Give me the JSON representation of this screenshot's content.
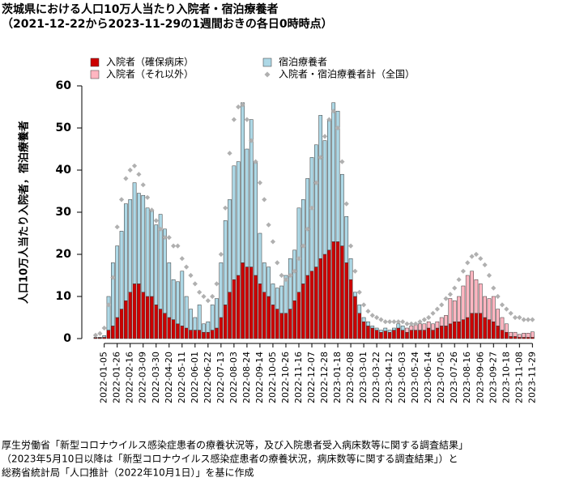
{
  "chart_data": {
    "type": "bar",
    "title": "茨城県における人口10万人当たり入院者・宿泊療養者",
    "subtitle": "（2021-12-22から2023-11-29の1週間おきの各日0時時点）",
    "ylabel": "人口10万人当たり入院者，宿泊療養者",
    "source": [
      "厚生労働省「新型コロナウイルス感染症患者の療養状況等，及び入院患者受入病床数等に関する調査結果」",
      "（2023年5月10日以降は「新型コロナウイルス感染症患者の療養状況，病床数等に関する調査結果」）と",
      "総務省統計局「人口推計（2022年10月1日）」を基に作成"
    ],
    "categories": [
      null,
      null,
      "2022-01-05",
      null,
      null,
      "2022-01-26",
      null,
      null,
      "2022-02-16",
      null,
      null,
      "2022-03-09",
      null,
      null,
      "2022-03-30",
      null,
      null,
      "2022-04-20",
      null,
      null,
      "2022-05-11",
      null,
      null,
      "2022-06-01",
      null,
      null,
      "2022-06-22",
      null,
      null,
      "2022-07-13",
      null,
      null,
      "2022-08-03",
      null,
      null,
      "2022-08-24",
      null,
      null,
      "2022-09-14",
      null,
      null,
      "2022-10-05",
      null,
      null,
      "2022-10-26",
      null,
      null,
      "2022-11-16",
      null,
      null,
      "2022-12-07",
      null,
      null,
      "2022-12-28",
      null,
      null,
      "2023-01-18",
      null,
      null,
      "2023-02-08",
      null,
      null,
      "2023-03-01",
      null,
      null,
      "2023-03-22",
      null,
      null,
      "2023-04-12",
      null,
      null,
      "2023-05-03",
      null,
      null,
      "2023-05-24",
      null,
      null,
      "2023-06-14",
      null,
      null,
      "2023-07-05",
      null,
      null,
      "2023-07-26",
      null,
      null,
      "2023-08-16",
      null,
      null,
      "2023-09-06",
      null,
      null,
      "2023-09-27",
      null,
      null,
      "2023-10-18",
      null,
      null,
      "2023-11-08",
      null,
      null,
      "2023-11-29"
    ],
    "series": [
      {
        "name": "入院者（確保病床）",
        "mark": "bar",
        "color": "#cc0000",
        "values": [
          0.2,
          0.2,
          0.3,
          2,
          3,
          5,
          7,
          9,
          11,
          13,
          13,
          11,
          10,
          10,
          8,
          7,
          6,
          5,
          4.5,
          3.5,
          3,
          2.5,
          2,
          2,
          2,
          1.5,
          1.5,
          2,
          2.5,
          5,
          8,
          11,
          14,
          15,
          18,
          17,
          17,
          15,
          13,
          11,
          10,
          8,
          7,
          6,
          6,
          7,
          9,
          11,
          13,
          15,
          16,
          17,
          19,
          20,
          21,
          23,
          23,
          22,
          18,
          14,
          10,
          6,
          4,
          3,
          2.5,
          2,
          1.5,
          1.8,
          1.5,
          2,
          2.5,
          2,
          1.5,
          2,
          2,
          2,
          2,
          2.5,
          2,
          2.5,
          3,
          3,
          3.5,
          4,
          4,
          4.5,
          5,
          6,
          6,
          6,
          5,
          4.5,
          4,
          3,
          2,
          1.5,
          0.5,
          0.5,
          0.3,
          0.3,
          0.3,
          0.3
        ]
      },
      {
        "name": "入院者（それ以外）",
        "mark": "bar",
        "color": "#ffb6c1",
        "values": [
          null,
          null,
          null,
          null,
          null,
          null,
          null,
          null,
          null,
          null,
          null,
          null,
          null,
          null,
          null,
          null,
          null,
          null,
          null,
          null,
          null,
          null,
          null,
          null,
          null,
          null,
          null,
          null,
          null,
          null,
          null,
          null,
          null,
          null,
          null,
          null,
          null,
          null,
          null,
          null,
          null,
          null,
          null,
          null,
          null,
          null,
          null,
          null,
          null,
          null,
          null,
          null,
          null,
          null,
          null,
          null,
          null,
          null,
          null,
          null,
          null,
          null,
          null,
          null,
          null,
          null,
          null,
          null,
          null,
          null,
          null,
          null,
          1,
          1,
          1.5,
          1.5,
          1.5,
          1.5,
          1.5,
          1.5,
          2,
          2.5,
          6,
          5,
          6,
          8,
          10,
          10,
          8,
          7,
          5,
          5,
          6,
          4,
          3,
          2,
          1,
          1,
          0.7,
          1,
          1,
          1.3
        ]
      },
      {
        "name": "宿泊療養者",
        "mark": "bar",
        "color": "#add8e6",
        "values": [
          0.1,
          0.1,
          0.4,
          8,
          15,
          17,
          18.5,
          23,
          22,
          24,
          21.5,
          23,
          21,
          20.5,
          19,
          22.5,
          20,
          13,
          9.5,
          10,
          13,
          7.5,
          5,
          3,
          6,
          2,
          2.5,
          6,
          7,
          13,
          20,
          22,
          27,
          27,
          38,
          28,
          35,
          27,
          12,
          7,
          7,
          5,
          5,
          6.5,
          9,
          12,
          12,
          20,
          20,
          23,
          27,
          29,
          34,
          27,
          31,
          33,
          31,
          17,
          11,
          5,
          1,
          2,
          1,
          1,
          0.5,
          0.5,
          0.5,
          0.7,
          0.5,
          0.5,
          1,
          1,
          null,
          null,
          null,
          null,
          null,
          null,
          null,
          null,
          null,
          null,
          null,
          null,
          null,
          null,
          null,
          null,
          null,
          null,
          null,
          null,
          null,
          null,
          null,
          null,
          null,
          null,
          null,
          null,
          null,
          null
        ]
      },
      {
        "name": "入院者・宿泊療養者計（全国）",
        "mark": "point",
        "color": "#b0b0b0",
        "values": [
          0.8,
          1.2,
          2.5,
          8,
          14.5,
          26.5,
          33,
          38,
          40,
          41,
          39,
          36.5,
          33.5,
          30.5,
          28,
          26,
          24,
          24,
          22,
          22,
          19,
          17,
          15,
          13,
          11,
          10,
          9,
          10,
          13,
          20,
          31,
          44,
          52,
          55,
          55.5,
          52,
          47,
          42,
          37,
          33,
          27,
          23,
          18,
          15,
          14,
          15,
          16,
          19,
          22,
          26,
          31,
          37,
          43,
          48,
          52,
          54,
          50,
          42,
          32,
          22,
          16,
          11,
          8,
          6.5,
          5.5,
          5,
          4.5,
          4,
          4,
          4,
          4,
          4,
          3.5,
          3.5,
          3.5,
          4,
          4.5,
          5,
          6,
          7,
          8,
          9.5,
          10.5,
          12,
          14,
          16,
          18,
          19.5,
          20,
          19,
          17.5,
          15,
          12,
          10,
          8,
          7,
          6,
          5,
          5,
          4.5,
          4.5,
          4.5
        ]
      }
    ],
    "ylim": [
      0,
      60
    ],
    "yticks": [
      0,
      10,
      20,
      30,
      40,
      50,
      60
    ]
  }
}
